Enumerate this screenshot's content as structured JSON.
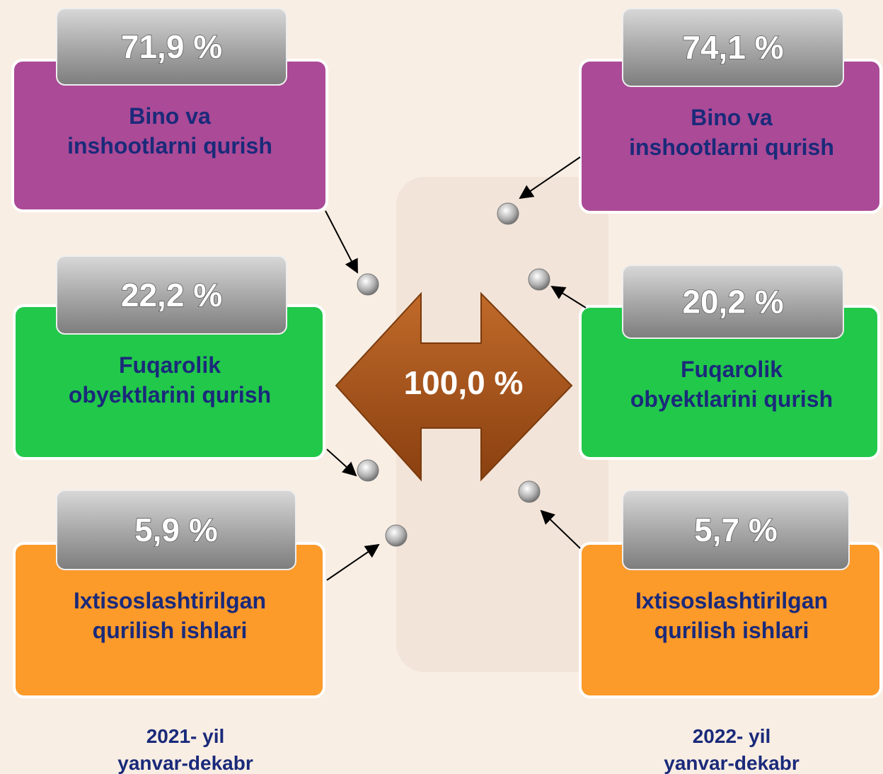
{
  "center": "100,0 %",
  "columns": [
    {
      "period": [
        "2021- yil",
        "yanvar-dekabr"
      ],
      "cards": [
        {
          "percent": "71,9 %",
          "label": [
            "Bino va",
            "inshootlarni qurish"
          ]
        },
        {
          "percent": "22,2 %",
          "label": [
            "Fuqarolik",
            "obyektlarini qurish"
          ]
        },
        {
          "percent": "5,9 %",
          "label": [
            "Ixtisoslashtirilgan",
            "qurilish ishlari"
          ]
        }
      ]
    },
    {
      "period": [
        "2022- yil",
        "yanvar-dekabr"
      ],
      "cards": [
        {
          "percent": "74,1 %",
          "label": [
            "Bino va",
            "inshootlarni qurish"
          ]
        },
        {
          "percent": "20,2 %",
          "label": [
            "Fuqarolik",
            "obyektlarini qurish"
          ]
        },
        {
          "percent": "5,7 %",
          "label": [
            "Ixtisoslashtirilgan",
            "qurilish ishlari"
          ]
        }
      ]
    }
  ]
}
